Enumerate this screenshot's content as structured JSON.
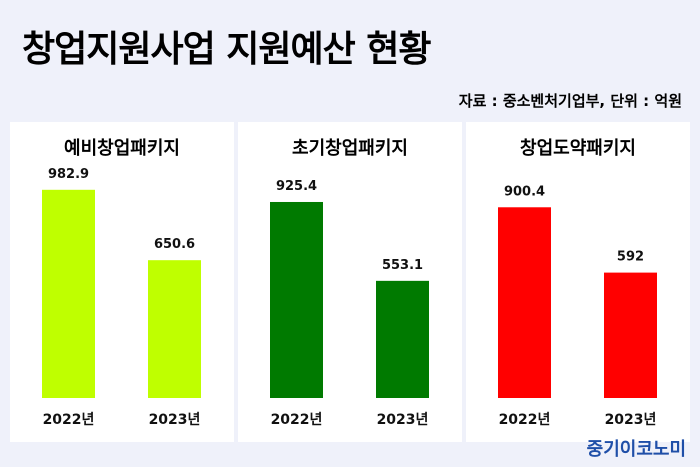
{
  "title": "창업지원사업 지원예산 현황",
  "source": "자료 : 중소벤처기업부, 단위 : 억원",
  "logo": "중기이코노미",
  "chart_data": [
    {
      "type": "bar",
      "title": "예비창업패키지",
      "categories": [
        "2022년",
        "2023년"
      ],
      "values": [
        982.9,
        650.6
      ],
      "labels": [
        "982.9",
        "650.6"
      ],
      "color": "#bfff00",
      "ylim": [
        0,
        1100
      ]
    },
    {
      "type": "bar",
      "title": "초기창업패키지",
      "categories": [
        "2022년",
        "2023년"
      ],
      "values": [
        925.4,
        553.1
      ],
      "labels": [
        "925.4",
        "553.1"
      ],
      "color": "#007a00",
      "ylim": [
        0,
        1100
      ]
    },
    {
      "type": "bar",
      "title": "창업도약패키지",
      "categories": [
        "2022년",
        "2023년"
      ],
      "values": [
        900.4,
        592
      ],
      "labels": [
        "900.4",
        "592"
      ],
      "color": "#ff0000",
      "ylim": [
        0,
        1100
      ]
    }
  ]
}
